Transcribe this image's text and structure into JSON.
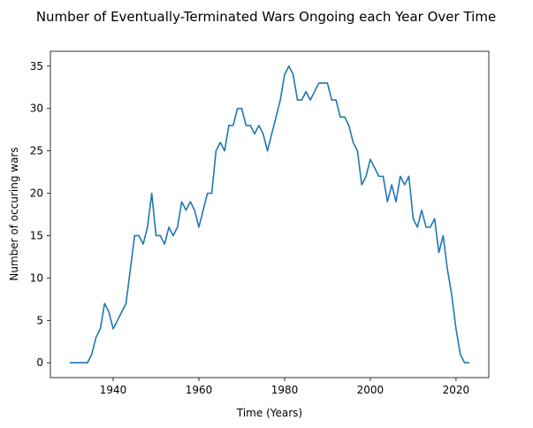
{
  "chart_data": {
    "type": "line",
    "title": "Number of Eventually-Terminated Wars Ongoing each Year Over Time",
    "xlabel": "Time (Years)",
    "ylabel": "Number of occuring wars",
    "xlim": [
      1925.35,
      2027.65
    ],
    "ylim": [
      -1.75,
      36.75
    ],
    "xticks": [
      1940,
      1960,
      1980,
      2000,
      2020
    ],
    "yticks": [
      0,
      5,
      10,
      15,
      20,
      25,
      30,
      35
    ],
    "grid": false,
    "series": [
      {
        "color": "#1f77b4",
        "x": [
          1930,
          1931,
          1932,
          1933,
          1934,
          1935,
          1936,
          1937,
          1938,
          1939,
          1940,
          1941,
          1942,
          1943,
          1944,
          1945,
          1946,
          1947,
          1948,
          1949,
          1950,
          1951,
          1952,
          1953,
          1954,
          1955,
          1956,
          1957,
          1958,
          1959,
          1960,
          1961,
          1962,
          1963,
          1964,
          1965,
          1966,
          1967,
          1968,
          1969,
          1970,
          1971,
          1972,
          1973,
          1974,
          1975,
          1976,
          1977,
          1978,
          1979,
          1980,
          1981,
          1982,
          1983,
          1984,
          1985,
          1986,
          1987,
          1988,
          1989,
          1990,
          1991,
          1992,
          1993,
          1994,
          1995,
          1996,
          1997,
          1998,
          1999,
          2000,
          2001,
          2002,
          2003,
          2004,
          2005,
          2006,
          2007,
          2008,
          2009,
          2010,
          2011,
          2012,
          2013,
          2014,
          2015,
          2016,
          2017,
          2018,
          2019,
          2020,
          2021,
          2022,
          2023
        ],
        "y": [
          0,
          0,
          0,
          0,
          0,
          1,
          3,
          4,
          7,
          6,
          4,
          5,
          6,
          7,
          11,
          15,
          15,
          14,
          16,
          20,
          15,
          15,
          14,
          16,
          15,
          16,
          19,
          18,
          19,
          18,
          16,
          18,
          20,
          20,
          25,
          26,
          25,
          28,
          28,
          30,
          30,
          28,
          28,
          27,
          28,
          27,
          25,
          27,
          29,
          31,
          34,
          35,
          34,
          31,
          31,
          32,
          31,
          32,
          33,
          33,
          33,
          31,
          31,
          29,
          29,
          28,
          26,
          25,
          21,
          22,
          24,
          23,
          22,
          22,
          19,
          21,
          19,
          22,
          21,
          22,
          17,
          16,
          18,
          16,
          16,
          17,
          13,
          15,
          11,
          8,
          4,
          1,
          0,
          0
        ]
      }
    ]
  }
}
